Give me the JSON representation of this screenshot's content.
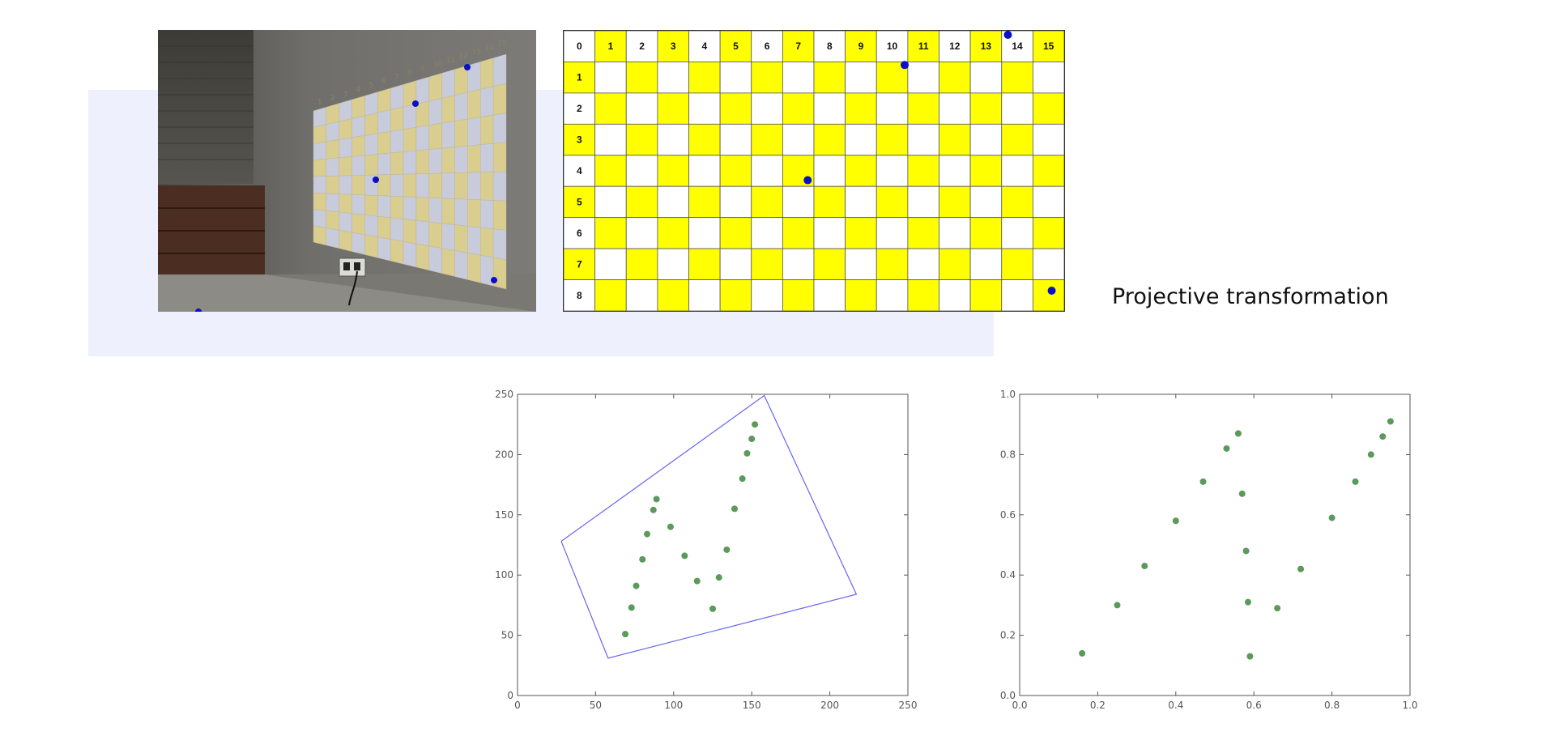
{
  "caption": "Projective transformation",
  "colors": {
    "panel_background": "#eef0fd",
    "board_yellow": "#ffff00",
    "board_white": "#ffffff",
    "marker_blue": "#0a10c8",
    "point_green": "#5a9a5a",
    "polygon_blue": "#6666ee"
  },
  "photo": {
    "description_icon": "projector-wall-photo-icon",
    "wall_numbers": [
      "1",
      "2",
      "3",
      "4",
      "5",
      "6",
      "7",
      "8",
      "9",
      "10",
      "11",
      "12",
      "13",
      "14",
      "15"
    ]
  },
  "board": {
    "column_labels": [
      "0",
      "1",
      "2",
      "3",
      "4",
      "5",
      "6",
      "7",
      "8",
      "9",
      "10",
      "11",
      "12",
      "13",
      "14",
      "15"
    ],
    "row_labels": [
      "1",
      "2",
      "3",
      "4",
      "5",
      "6",
      "7",
      "8"
    ]
  },
  "chart_data": [
    {
      "type": "scatter",
      "title": "",
      "xlabel": "",
      "ylabel": "",
      "xlim": [
        0,
        250
      ],
      "ylim": [
        0,
        250
      ],
      "xticks": [
        "0",
        "50",
        "100",
        "150",
        "200",
        "250"
      ],
      "yticks": [
        "0",
        "50",
        "100",
        "150",
        "200",
        "250"
      ],
      "polygon": [
        [
          28,
          128
        ],
        [
          158,
          249
        ],
        [
          217,
          84
        ],
        [
          58,
          31
        ],
        [
          28,
          128
        ]
      ],
      "points": [
        [
          69,
          51
        ],
        [
          73,
          73
        ],
        [
          76,
          91
        ],
        [
          80,
          113
        ],
        [
          83,
          134
        ],
        [
          87,
          154
        ],
        [
          89,
          163
        ],
        [
          98,
          140
        ],
        [
          107,
          116
        ],
        [
          115,
          95
        ],
        [
          125,
          72
        ],
        [
          129,
          98
        ],
        [
          134,
          121
        ],
        [
          139,
          155
        ],
        [
          144,
          180
        ],
        [
          147,
          201
        ],
        [
          150,
          213
        ],
        [
          152,
          225
        ]
      ]
    },
    {
      "type": "scatter",
      "title": "",
      "xlabel": "",
      "ylabel": "",
      "xlim": [
        0.0,
        1.0
      ],
      "ylim": [
        0.0,
        1.0
      ],
      "xticks": [
        "0.0",
        "0.2",
        "0.4",
        "0.6",
        "0.8",
        "1.0"
      ],
      "yticks": [
        "0.0",
        "0.2",
        "0.4",
        "0.6",
        "0.8",
        "1.0"
      ],
      "points": [
        [
          0.16,
          0.14
        ],
        [
          0.25,
          0.3
        ],
        [
          0.32,
          0.43
        ],
        [
          0.4,
          0.58
        ],
        [
          0.47,
          0.71
        ],
        [
          0.53,
          0.82
        ],
        [
          0.56,
          0.87
        ],
        [
          0.57,
          0.67
        ],
        [
          0.58,
          0.48
        ],
        [
          0.585,
          0.31
        ],
        [
          0.59,
          0.13
        ],
        [
          0.66,
          0.29
        ],
        [
          0.72,
          0.42
        ],
        [
          0.8,
          0.59
        ],
        [
          0.86,
          0.71
        ],
        [
          0.9,
          0.8
        ],
        [
          0.93,
          0.86
        ],
        [
          0.95,
          0.91
        ]
      ]
    }
  ]
}
